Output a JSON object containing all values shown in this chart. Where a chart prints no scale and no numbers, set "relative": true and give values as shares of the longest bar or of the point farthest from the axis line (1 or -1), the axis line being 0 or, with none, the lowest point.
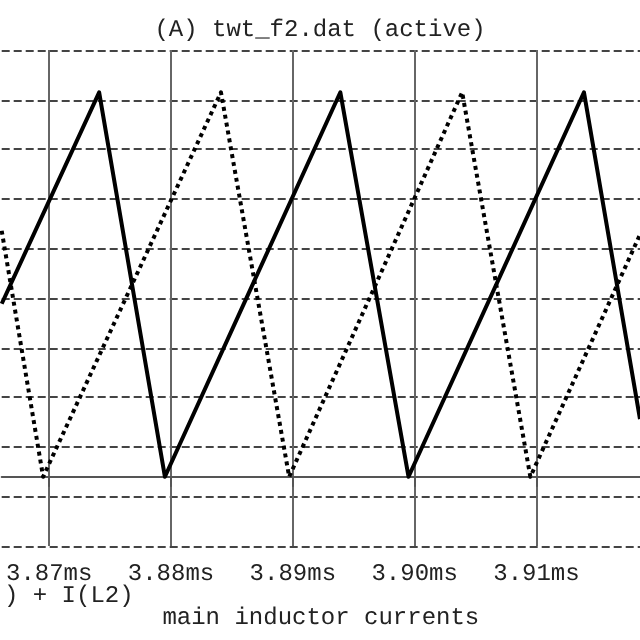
{
  "chart_data": {
    "type": "line",
    "title": "(A) twt_f2.dat (active)",
    "xlabel": "main inductor currents",
    "annotations": [
      ") + I(L2)"
    ],
    "relative": true,
    "grid": true,
    "marker": "none",
    "xlim": [
      3.8661,
      3.9185
    ],
    "xticks": [
      {
        "value": 3.87,
        "label": "3.87ms"
      },
      {
        "value": 3.88,
        "label": "3.88ms"
      },
      {
        "value": 3.89,
        "label": "3.89ms"
      },
      {
        "value": 3.9,
        "label": "3.90ms"
      },
      {
        "value": 3.91,
        "label": "3.91ms"
      }
    ],
    "series": [
      {
        "color": "#000000",
        "line_style": "solid",
        "x": [
          3.8661,
          3.8741,
          3.8795,
          3.8939,
          3.8995,
          3.9139,
          3.9185
        ],
        "values": [
          0.45,
          1,
          0,
          1,
          0,
          1,
          0.15
        ]
      },
      {
        "color": "#000000",
        "line_style": "dotted",
        "x": [
          3.8661,
          3.8695,
          3.8841,
          3.8897,
          3.9039,
          3.9095,
          3.9185
        ],
        "values": [
          0.64,
          0,
          1,
          0,
          1,
          0,
          0.63
        ]
      }
    ]
  }
}
